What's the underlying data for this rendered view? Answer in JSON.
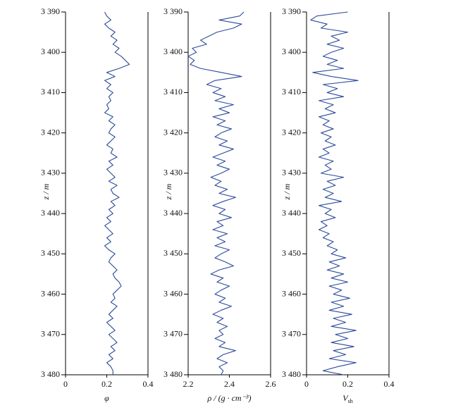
{
  "chart_data": [
    {
      "type": "line",
      "x_label": "φ",
      "y_label": "z / m",
      "color": "#2b4a9b",
      "y_inverted": true,
      "xlim": [
        0,
        0.4
      ],
      "xticks": [
        0,
        0.2,
        0.4
      ],
      "ylim": [
        3390,
        3480
      ],
      "yticks": [
        {
          "value": 3390,
          "label": "3 390"
        },
        {
          "value": 3400,
          "label": "3 400"
        },
        {
          "value": 3410,
          "label": "3 410"
        },
        {
          "value": 3420,
          "label": "3 420"
        },
        {
          "value": 3430,
          "label": "3 430"
        },
        {
          "value": 3440,
          "label": "3 440"
        },
        {
          "value": 3450,
          "label": "3 450"
        },
        {
          "value": 3460,
          "label": "3 460"
        },
        {
          "value": 3470,
          "label": "3 470"
        },
        {
          "value": 3480,
          "label": "3 480"
        }
      ],
      "y": [
        3390,
        3391,
        3392,
        3393,
        3394,
        3395,
        3396,
        3397,
        3398,
        3399,
        3400,
        3401,
        3402,
        3403,
        3404,
        3405,
        3406,
        3407,
        3408,
        3409,
        3410,
        3411,
        3412,
        3413,
        3414,
        3415,
        3416,
        3417,
        3418,
        3419,
        3420,
        3421,
        3422,
        3423,
        3424,
        3425,
        3426,
        3427,
        3428,
        3429,
        3430,
        3431,
        3432,
        3433,
        3434,
        3435,
        3436,
        3437,
        3438,
        3439,
        3440,
        3441,
        3442,
        3443,
        3444,
        3445,
        3446,
        3447,
        3448,
        3449,
        3450,
        3451,
        3452,
        3453,
        3454,
        3455,
        3456,
        3457,
        3458,
        3459,
        3460,
        3461,
        3462,
        3463,
        3464,
        3465,
        3466,
        3467,
        3468,
        3469,
        3470,
        3471,
        3472,
        3473,
        3474,
        3475,
        3476,
        3477,
        3478,
        3479,
        3480
      ],
      "values": [
        0.19,
        0.2,
        0.22,
        0.19,
        0.21,
        0.24,
        0.22,
        0.25,
        0.23,
        0.26,
        0.24,
        0.27,
        0.29,
        0.31,
        0.26,
        0.2,
        0.24,
        0.19,
        0.22,
        0.2,
        0.23,
        0.21,
        0.22,
        0.2,
        0.21,
        0.19,
        0.23,
        0.21,
        0.24,
        0.22,
        0.21,
        0.24,
        0.22,
        0.2,
        0.23,
        0.22,
        0.25,
        0.21,
        0.23,
        0.2,
        0.22,
        0.24,
        0.21,
        0.25,
        0.22,
        0.23,
        0.26,
        0.22,
        0.24,
        0.21,
        0.23,
        0.2,
        0.22,
        0.19,
        0.21,
        0.23,
        0.2,
        0.22,
        0.19,
        0.21,
        0.24,
        0.22,
        0.21,
        0.23,
        0.25,
        0.23,
        0.24,
        0.26,
        0.27,
        0.25,
        0.23,
        0.24,
        0.22,
        0.25,
        0.23,
        0.21,
        0.23,
        0.2,
        0.22,
        0.24,
        0.21,
        0.23,
        0.25,
        0.22,
        0.24,
        0.21,
        0.23,
        0.2,
        0.22,
        0.23,
        0.23
      ]
    },
    {
      "type": "line",
      "x_label": "ρ / (g · cm⁻³)",
      "y_label": "z / m",
      "color": "#2b4a9b",
      "y_inverted": true,
      "xlim": [
        2.2,
        2.6
      ],
      "xticks": [
        2.2,
        2.4,
        2.6
      ],
      "ylim": [
        3390,
        3480
      ],
      "yticks": [
        {
          "value": 3390,
          "label": "3 390"
        },
        {
          "value": 3400,
          "label": "3 400"
        },
        {
          "value": 3410,
          "label": "3 410"
        },
        {
          "value": 3420,
          "label": "3 420"
        },
        {
          "value": 3430,
          "label": "3 430"
        },
        {
          "value": 3440,
          "label": "3 440"
        },
        {
          "value": 3450,
          "label": "3 450"
        },
        {
          "value": 3460,
          "label": "3 460"
        },
        {
          "value": 3470,
          "label": "3 470"
        },
        {
          "value": 3480,
          "label": "3 480"
        }
      ],
      "y": [
        3390,
        3391,
        3392,
        3393,
        3394,
        3395,
        3396,
        3397,
        3398,
        3399,
        3400,
        3401,
        3402,
        3403,
        3404,
        3405,
        3406,
        3407,
        3408,
        3409,
        3410,
        3411,
        3412,
        3413,
        3414,
        3415,
        3416,
        3417,
        3418,
        3419,
        3420,
        3421,
        3422,
        3423,
        3424,
        3425,
        3426,
        3427,
        3428,
        3429,
        3430,
        3431,
        3432,
        3433,
        3434,
        3435,
        3436,
        3437,
        3438,
        3439,
        3440,
        3441,
        3442,
        3443,
        3444,
        3445,
        3446,
        3447,
        3448,
        3449,
        3450,
        3451,
        3452,
        3453,
        3454,
        3455,
        3456,
        3457,
        3458,
        3459,
        3460,
        3461,
        3462,
        3463,
        3464,
        3465,
        3466,
        3467,
        3468,
        3469,
        3470,
        3471,
        3472,
        3473,
        3474,
        3475,
        3476,
        3477,
        3478,
        3479,
        3480
      ],
      "values": [
        2.47,
        2.45,
        2.35,
        2.46,
        2.42,
        2.34,
        2.3,
        2.26,
        2.29,
        2.22,
        2.24,
        2.2,
        2.23,
        2.21,
        2.26,
        2.36,
        2.46,
        2.33,
        2.29,
        2.36,
        2.32,
        2.38,
        2.33,
        2.42,
        2.35,
        2.4,
        2.32,
        2.38,
        2.34,
        2.41,
        2.36,
        2.33,
        2.39,
        2.35,
        2.42,
        2.37,
        2.32,
        2.38,
        2.34,
        2.4,
        2.36,
        2.31,
        2.36,
        2.33,
        2.39,
        2.35,
        2.43,
        2.37,
        2.32,
        2.38,
        2.35,
        2.41,
        2.34,
        2.37,
        2.32,
        2.39,
        2.34,
        2.38,
        2.33,
        2.4,
        2.36,
        2.33,
        2.38,
        2.42,
        2.35,
        2.31,
        2.37,
        2.34,
        2.4,
        2.36,
        2.33,
        2.38,
        2.35,
        2.41,
        2.36,
        2.32,
        2.37,
        2.34,
        2.39,
        2.35,
        2.37,
        2.33,
        2.38,
        2.35,
        2.43,
        2.37,
        2.34,
        2.39,
        2.35,
        2.37,
        2.36
      ]
    },
    {
      "type": "line",
      "x_label": "V",
      "x_label_sub": "sh",
      "y_label": "z / m",
      "color": "#2b4a9b",
      "y_inverted": true,
      "xlim": [
        0,
        0.4
      ],
      "xticks": [
        0,
        0.2,
        0.4
      ],
      "ylim": [
        3390,
        3480
      ],
      "yticks": [
        {
          "value": 3390,
          "label": "3 390"
        },
        {
          "value": 3400,
          "label": "3 400"
        },
        {
          "value": 3410,
          "label": "3 410"
        },
        {
          "value": 3420,
          "label": "3 420"
        },
        {
          "value": 3430,
          "label": "3 430"
        },
        {
          "value": 3440,
          "label": "3 440"
        },
        {
          "value": 3450,
          "label": "3 450"
        },
        {
          "value": 3460,
          "label": "3 460"
        },
        {
          "value": 3470,
          "label": "3 470"
        },
        {
          "value": 3480,
          "label": "3 480"
        }
      ],
      "y": [
        3390,
        3391,
        3392,
        3393,
        3394,
        3395,
        3396,
        3397,
        3398,
        3399,
        3400,
        3401,
        3402,
        3403,
        3404,
        3405,
        3406,
        3407,
        3408,
        3409,
        3410,
        3411,
        3412,
        3413,
        3414,
        3415,
        3416,
        3417,
        3418,
        3419,
        3420,
        3421,
        3422,
        3423,
        3424,
        3425,
        3426,
        3427,
        3428,
        3429,
        3430,
        3431,
        3432,
        3433,
        3434,
        3435,
        3436,
        3437,
        3438,
        3439,
        3440,
        3441,
        3442,
        3443,
        3444,
        3445,
        3446,
        3447,
        3448,
        3449,
        3450,
        3451,
        3452,
        3453,
        3454,
        3455,
        3456,
        3457,
        3458,
        3459,
        3460,
        3461,
        3462,
        3463,
        3464,
        3465,
        3466,
        3467,
        3468,
        3469,
        3470,
        3471,
        3472,
        3473,
        3474,
        3475,
        3476,
        3477,
        3478,
        3479,
        3480
      ],
      "values": [
        0.2,
        0.05,
        0.02,
        0.1,
        0.07,
        0.2,
        0.12,
        0.16,
        0.1,
        0.18,
        0.12,
        0.08,
        0.15,
        0.1,
        0.18,
        0.03,
        0.12,
        0.25,
        0.08,
        0.15,
        0.1,
        0.18,
        0.06,
        0.13,
        0.09,
        0.14,
        0.06,
        0.11,
        0.08,
        0.13,
        0.07,
        0.12,
        0.09,
        0.14,
        0.08,
        0.11,
        0.06,
        0.13,
        0.09,
        0.12,
        0.07,
        0.18,
        0.1,
        0.14,
        0.08,
        0.13,
        0.09,
        0.17,
        0.06,
        0.12,
        0.09,
        0.14,
        0.07,
        0.1,
        0.06,
        0.11,
        0.08,
        0.13,
        0.1,
        0.15,
        0.12,
        0.19,
        0.11,
        0.16,
        0.1,
        0.18,
        0.12,
        0.2,
        0.11,
        0.17,
        0.13,
        0.21,
        0.12,
        0.18,
        0.11,
        0.22,
        0.13,
        0.19,
        0.12,
        0.24,
        0.14,
        0.2,
        0.12,
        0.23,
        0.13,
        0.19,
        0.11,
        0.24,
        0.15,
        0.08,
        0.18
      ]
    }
  ]
}
